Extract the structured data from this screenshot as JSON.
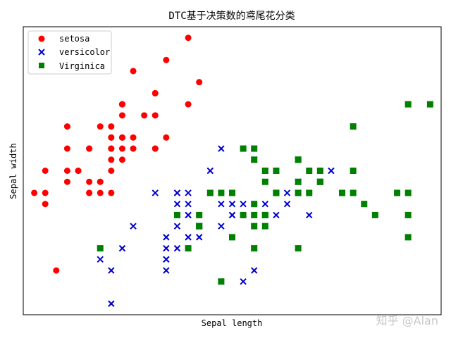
{
  "chart_data": {
    "type": "scatter",
    "title": "DTC基于决策数的鸢尾花分类",
    "xlabel": "Sepal length",
    "ylabel": "Sepal width",
    "xlim": [
      4.2,
      8.0
    ],
    "ylim": [
      1.9,
      4.5
    ],
    "grid": false,
    "legend_position": "top-left",
    "series": [
      {
        "name": "setosa",
        "marker": "circle",
        "color": "#ff0000",
        "points": [
          [
            5.1,
            3.5
          ],
          [
            4.9,
            3.0
          ],
          [
            4.7,
            3.2
          ],
          [
            4.6,
            3.1
          ],
          [
            5.0,
            3.6
          ],
          [
            5.4,
            3.9
          ],
          [
            4.6,
            3.4
          ],
          [
            5.0,
            3.4
          ],
          [
            4.4,
            2.9
          ],
          [
            4.9,
            3.1
          ],
          [
            5.4,
            3.7
          ],
          [
            4.8,
            3.4
          ],
          [
            4.8,
            3.0
          ],
          [
            4.3,
            3.0
          ],
          [
            5.8,
            4.0
          ],
          [
            5.7,
            4.4
          ],
          [
            5.4,
            3.9
          ],
          [
            5.1,
            3.5
          ],
          [
            5.7,
            3.8
          ],
          [
            5.1,
            3.8
          ],
          [
            5.4,
            3.4
          ],
          [
            5.1,
            3.7
          ],
          [
            4.6,
            3.6
          ],
          [
            5.1,
            3.3
          ],
          [
            4.8,
            3.4
          ],
          [
            5.0,
            3.0
          ],
          [
            5.0,
            3.4
          ],
          [
            5.2,
            3.5
          ],
          [
            5.2,
            3.4
          ],
          [
            4.7,
            3.2
          ],
          [
            4.8,
            3.1
          ],
          [
            5.4,
            3.4
          ],
          [
            5.2,
            4.1
          ],
          [
            5.5,
            4.2
          ],
          [
            4.9,
            3.1
          ],
          [
            5.0,
            3.2
          ],
          [
            5.5,
            3.5
          ],
          [
            4.9,
            3.6
          ],
          [
            4.4,
            3.0
          ],
          [
            5.1,
            3.4
          ],
          [
            5.0,
            3.5
          ],
          [
            4.5,
            2.3
          ],
          [
            4.4,
            3.2
          ],
          [
            5.0,
            3.5
          ],
          [
            5.1,
            3.8
          ],
          [
            4.8,
            3.0
          ],
          [
            5.1,
            3.8
          ],
          [
            4.6,
            3.2
          ],
          [
            5.3,
            3.7
          ],
          [
            5.0,
            3.3
          ]
        ]
      },
      {
        "name": "versicolor",
        "marker": "x",
        "color": "#0000cc",
        "points": [
          [
            7.0,
            3.2
          ],
          [
            6.4,
            3.2
          ],
          [
            6.9,
            3.1
          ],
          [
            5.5,
            2.3
          ],
          [
            6.5,
            2.8
          ],
          [
            5.7,
            2.8
          ],
          [
            6.3,
            3.3
          ],
          [
            4.9,
            2.4
          ],
          [
            6.6,
            2.9
          ],
          [
            5.2,
            2.7
          ],
          [
            5.0,
            2.0
          ],
          [
            5.9,
            3.0
          ],
          [
            6.0,
            2.2
          ],
          [
            6.1,
            2.9
          ],
          [
            5.6,
            2.9
          ],
          [
            6.7,
            3.1
          ],
          [
            5.6,
            3.0
          ],
          [
            5.8,
            2.7
          ],
          [
            6.2,
            2.2
          ],
          [
            5.6,
            2.5
          ],
          [
            5.9,
            3.2
          ],
          [
            6.1,
            2.8
          ],
          [
            6.3,
            2.5
          ],
          [
            6.1,
            2.8
          ],
          [
            6.4,
            2.9
          ],
          [
            6.6,
            3.0
          ],
          [
            6.8,
            2.8
          ],
          [
            6.7,
            3.0
          ],
          [
            6.0,
            2.9
          ],
          [
            5.7,
            2.6
          ],
          [
            5.5,
            2.4
          ],
          [
            5.5,
            2.4
          ],
          [
            5.8,
            2.7
          ],
          [
            6.0,
            2.7
          ],
          [
            5.4,
            3.0
          ],
          [
            6.0,
            3.4
          ],
          [
            6.7,
            3.1
          ],
          [
            6.3,
            2.3
          ],
          [
            5.6,
            3.0
          ],
          [
            5.5,
            2.5
          ],
          [
            5.5,
            2.6
          ],
          [
            6.1,
            3.0
          ],
          [
            5.8,
            2.6
          ],
          [
            5.0,
            2.3
          ],
          [
            5.6,
            2.7
          ],
          [
            5.7,
            3.0
          ],
          [
            5.7,
            2.9
          ],
          [
            6.2,
            2.9
          ],
          [
            5.1,
            2.5
          ],
          [
            5.7,
            2.8
          ]
        ]
      },
      {
        "name": "Virginica",
        "marker": "square",
        "color": "#008000",
        "points": [
          [
            6.3,
            3.3
          ],
          [
            5.8,
            2.7
          ],
          [
            7.1,
            3.0
          ],
          [
            6.3,
            2.9
          ],
          [
            6.5,
            3.0
          ],
          [
            7.6,
            3.0
          ],
          [
            4.9,
            2.5
          ],
          [
            7.3,
            2.9
          ],
          [
            6.7,
            2.5
          ],
          [
            7.2,
            3.6
          ],
          [
            6.5,
            3.2
          ],
          [
            6.4,
            2.7
          ],
          [
            6.8,
            3.0
          ],
          [
            5.7,
            2.5
          ],
          [
            5.8,
            2.8
          ],
          [
            6.4,
            3.2
          ],
          [
            6.5,
            3.0
          ],
          [
            7.7,
            3.8
          ],
          [
            7.7,
            2.6
          ],
          [
            6.0,
            2.2
          ],
          [
            6.9,
            3.2
          ],
          [
            5.6,
            2.8
          ],
          [
            7.7,
            2.8
          ],
          [
            6.3,
            2.7
          ],
          [
            6.7,
            3.3
          ],
          [
            7.2,
            3.2
          ],
          [
            6.2,
            2.8
          ],
          [
            6.1,
            3.0
          ],
          [
            6.4,
            2.8
          ],
          [
            7.2,
            3.0
          ],
          [
            7.4,
            2.8
          ],
          [
            7.9,
            3.8
          ],
          [
            6.4,
            2.8
          ],
          [
            6.3,
            2.8
          ],
          [
            6.1,
            2.6
          ],
          [
            7.7,
            3.0
          ],
          [
            6.3,
            3.4
          ],
          [
            6.4,
            3.1
          ],
          [
            6.0,
            3.0
          ],
          [
            6.9,
            3.1
          ],
          [
            6.7,
            3.1
          ],
          [
            6.9,
            3.1
          ],
          [
            5.8,
            2.7
          ],
          [
            6.8,
            3.2
          ],
          [
            6.7,
            3.3
          ],
          [
            6.7,
            3.0
          ],
          [
            6.3,
            2.5
          ],
          [
            6.5,
            3.0
          ],
          [
            6.2,
            3.4
          ],
          [
            5.9,
            3.0
          ]
        ]
      }
    ]
  },
  "watermark": {
    "text": "知乎 @Alan"
  }
}
